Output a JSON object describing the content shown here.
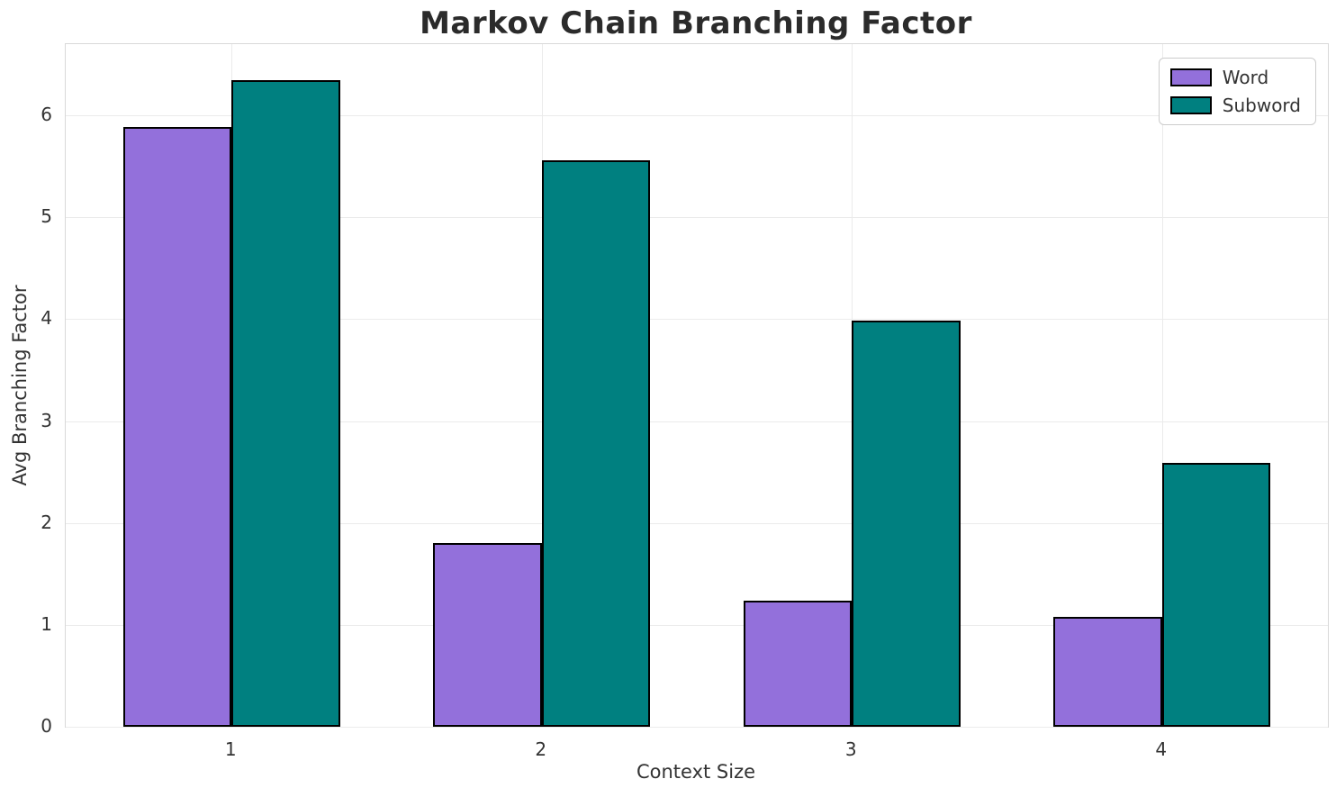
{
  "chart_data": {
    "type": "bar",
    "title": "Markov Chain Branching Factor",
    "xlabel": "Context Size",
    "ylabel": "Avg Branching Factor",
    "categories": [
      "1",
      "2",
      "3",
      "4"
    ],
    "series": [
      {
        "name": "Word",
        "color": "#9370DB",
        "values": [
          5.89,
          1.8,
          1.24,
          1.08
        ]
      },
      {
        "name": "Subword",
        "color": "#008080",
        "values": [
          6.35,
          5.56,
          3.99,
          2.59
        ]
      }
    ],
    "yticks": [
      0,
      1,
      2,
      3,
      4,
      5,
      6
    ],
    "ylim": [
      0,
      6.7
    ],
    "bar_width": 0.35,
    "bar_edge_color": "#000000",
    "grid": true,
    "legend_position": "upper right"
  }
}
